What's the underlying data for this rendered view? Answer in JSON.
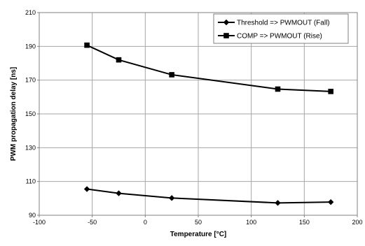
{
  "chart_data": {
    "type": "line",
    "xlabel": "Temperature [°C]",
    "ylabel": "PWM propagation delay [ns]",
    "xlim": [
      -100,
      200
    ],
    "ylim": [
      90,
      210
    ],
    "xticks": [
      -100,
      -50,
      0,
      50,
      100,
      150,
      200
    ],
    "yticks": [
      90,
      110,
      130,
      150,
      170,
      190,
      210
    ],
    "grid": true,
    "legend_position": "top-right",
    "series": [
      {
        "name": "Threshold => PWMOUT (Fall)",
        "marker": "diamond",
        "color": "#000000",
        "x": [
          -55,
          -25,
          25,
          125,
          175
        ],
        "y": [
          105.5,
          103,
          100.2,
          97.3,
          97.8
        ]
      },
      {
        "name": "COMP => PWMOUT (Rise)",
        "marker": "square",
        "color": "#000000",
        "x": [
          -55,
          -25,
          25,
          125,
          175
        ],
        "y": [
          190.7,
          182,
          173.2,
          164.7,
          163.3
        ]
      }
    ]
  }
}
